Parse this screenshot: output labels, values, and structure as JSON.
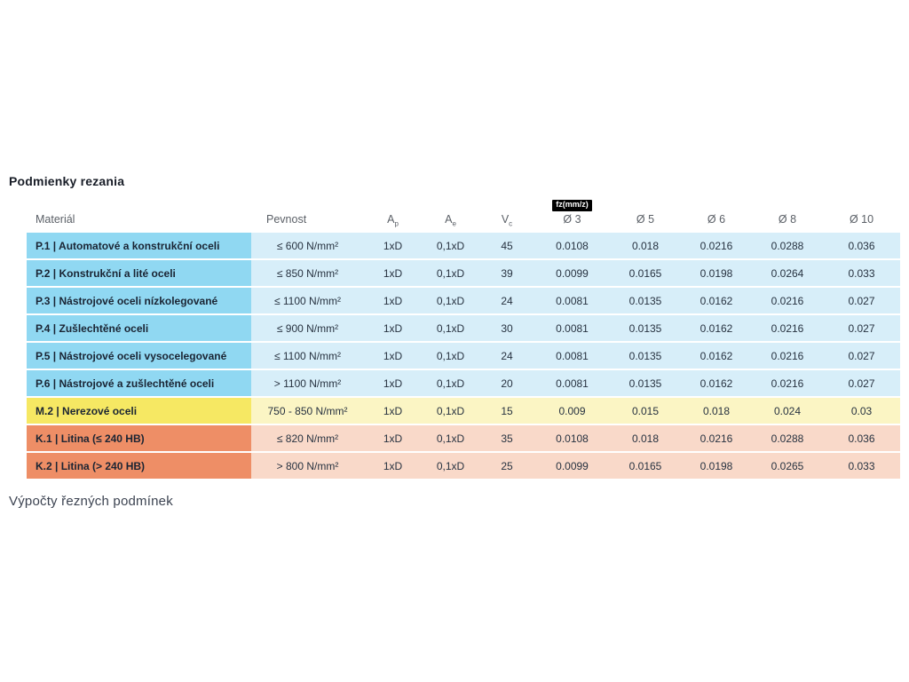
{
  "page": {
    "title": "Podmienky rezania",
    "footer_text": "Výpočty řezných podmínek",
    "background": "#ffffff"
  },
  "table": {
    "columns": [
      {
        "key": "material",
        "label": "Materiál",
        "sub": ""
      },
      {
        "key": "pevnost",
        "label": "Pevnost",
        "sub": ""
      },
      {
        "key": "ap",
        "label": "A",
        "sub": "p"
      },
      {
        "key": "ae",
        "label": "A",
        "sub": "e"
      },
      {
        "key": "vc",
        "label": "V",
        "sub": "c"
      },
      {
        "key": "d3",
        "label": "Ø 3",
        "sub": "",
        "badge": "fz(mm/z)"
      },
      {
        "key": "d5",
        "label": "Ø 5",
        "sub": ""
      },
      {
        "key": "d6",
        "label": "Ø 6",
        "sub": ""
      },
      {
        "key": "d8",
        "label": "Ø 8",
        "sub": ""
      },
      {
        "key": "d10",
        "label": "Ø 10",
        "sub": ""
      }
    ],
    "groups": {
      "P": {
        "material_bg": "#90d8f2",
        "data_bg": "#d7eef9"
      },
      "M": {
        "material_bg": "#f6e863",
        "data_bg": "#fbf5c4"
      },
      "K": {
        "material_bg": "#ee8e66",
        "data_bg": "#f9d9c9"
      }
    },
    "rows": [
      {
        "group": "P",
        "material": "P.1 | Automatové a konstrukční oceli",
        "pevnost": "≤ 600 N/mm²",
        "ap": "1xD",
        "ae": "0,1xD",
        "vc": "45",
        "d3": "0.0108",
        "d5": "0.018",
        "d6": "0.0216",
        "d8": "0.0288",
        "d10": "0.036"
      },
      {
        "group": "P",
        "material": "P.2 | Konstrukční a lité oceli",
        "pevnost": "≤ 850 N/mm²",
        "ap": "1xD",
        "ae": "0,1xD",
        "vc": "39",
        "d3": "0.0099",
        "d5": "0.0165",
        "d6": "0.0198",
        "d8": "0.0264",
        "d10": "0.033"
      },
      {
        "group": "P",
        "material": "P.3 | Nástrojové oceli nízkolegované",
        "pevnost": "≤ 1100 N/mm²",
        "ap": "1xD",
        "ae": "0,1xD",
        "vc": "24",
        "d3": "0.0081",
        "d5": "0.0135",
        "d6": "0.0162",
        "d8": "0.0216",
        "d10": "0.027"
      },
      {
        "group": "P",
        "material": "P.4 | Zušlechtěné oceli",
        "pevnost": "≤ 900 N/mm²",
        "ap": "1xD",
        "ae": "0,1xD",
        "vc": "30",
        "d3": "0.0081",
        "d5": "0.0135",
        "d6": "0.0162",
        "d8": "0.0216",
        "d10": "0.027"
      },
      {
        "group": "P",
        "material": "P.5 | Nástrojové oceli vysocelegované",
        "pevnost": "≤ 1100 N/mm²",
        "ap": "1xD",
        "ae": "0,1xD",
        "vc": "24",
        "d3": "0.0081",
        "d5": "0.0135",
        "d6": "0.0162",
        "d8": "0.0216",
        "d10": "0.027"
      },
      {
        "group": "P",
        "material": "P.6 | Nástrojové a zušlechtěné oceli",
        "pevnost": "> 1100 N/mm²",
        "ap": "1xD",
        "ae": "0,1xD",
        "vc": "20",
        "d3": "0.0081",
        "d5": "0.0135",
        "d6": "0.0162",
        "d8": "0.0216",
        "d10": "0.027"
      },
      {
        "group": "M",
        "material": "M.2 | Nerezové oceli",
        "pevnost": "750 - 850 N/mm²",
        "ap": "1xD",
        "ae": "0,1xD",
        "vc": "15",
        "d3": "0.009",
        "d5": "0.015",
        "d6": "0.018",
        "d8": "0.024",
        "d10": "0.03"
      },
      {
        "group": "K",
        "material": "K.1 | Litina (≤ 240 HB)",
        "pevnost": "≤ 820 N/mm²",
        "ap": "1xD",
        "ae": "0,1xD",
        "vc": "35",
        "d3": "0.0108",
        "d5": "0.018",
        "d6": "0.0216",
        "d8": "0.0288",
        "d10": "0.036"
      },
      {
        "group": "K",
        "material": "K.2 | Litina (> 240 HB)",
        "pevnost": "> 800 N/mm²",
        "ap": "1xD",
        "ae": "0,1xD",
        "vc": "25",
        "d3": "0.0099",
        "d5": "0.0165",
        "d6": "0.0198",
        "d8": "0.0265",
        "d10": "0.033"
      }
    ]
  },
  "chart_data": {
    "type": "table",
    "title": "Podmienky rezania",
    "feed_unit_note": "fz(mm/z)",
    "columns": [
      "Materiál",
      "Pevnost",
      "Ap",
      "Ae",
      "Vc",
      "Ø 3",
      "Ø 5",
      "Ø 6",
      "Ø 8",
      "Ø 10"
    ],
    "rows": [
      [
        "P.1 | Automatové a konstrukční oceli",
        "≤ 600 N/mm²",
        "1xD",
        "0,1xD",
        45,
        0.0108,
        0.018,
        0.0216,
        0.0288,
        0.036
      ],
      [
        "P.2 | Konstrukční a lité oceli",
        "≤ 850 N/mm²",
        "1xD",
        "0,1xD",
        39,
        0.0099,
        0.0165,
        0.0198,
        0.0264,
        0.033
      ],
      [
        "P.3 | Nástrojové oceli nízkolegované",
        "≤ 1100 N/mm²",
        "1xD",
        "0,1xD",
        24,
        0.0081,
        0.0135,
        0.0162,
        0.0216,
        0.027
      ],
      [
        "P.4 | Zušlechtěné oceli",
        "≤ 900 N/mm²",
        "1xD",
        "0,1xD",
        30,
        0.0081,
        0.0135,
        0.0162,
        0.0216,
        0.027
      ],
      [
        "P.5 | Nástrojové oceli vysocelegované",
        "≤ 1100 N/mm²",
        "1xD",
        "0,1xD",
        24,
        0.0081,
        0.0135,
        0.0162,
        0.0216,
        0.027
      ],
      [
        "P.6 | Nástrojové a zušlechtěné oceli",
        "> 1100 N/mm²",
        "1xD",
        "0,1xD",
        20,
        0.0081,
        0.0135,
        0.0162,
        0.0216,
        0.027
      ],
      [
        "M.2 | Nerezové oceli",
        "750 - 850 N/mm²",
        "1xD",
        "0,1xD",
        15,
        0.009,
        0.015,
        0.018,
        0.024,
        0.03
      ],
      [
        "K.1 | Litina (≤ 240 HB)",
        "≤ 820 N/mm²",
        "1xD",
        "0,1xD",
        35,
        0.0108,
        0.018,
        0.0216,
        0.0288,
        0.036
      ],
      [
        "K.2 | Litina (> 240 HB)",
        "> 800 N/mm²",
        "1xD",
        "0,1xD",
        25,
        0.0099,
        0.0165,
        0.0198,
        0.0265,
        0.033
      ]
    ]
  }
}
